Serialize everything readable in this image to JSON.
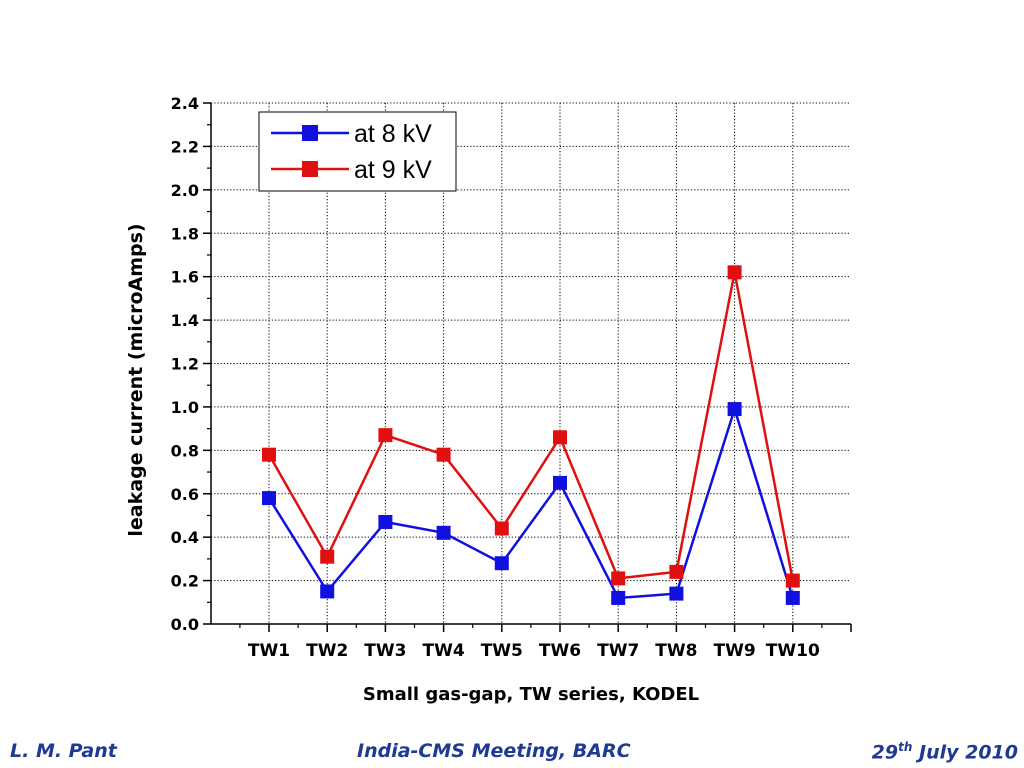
{
  "chart_data": {
    "type": "line",
    "categories": [
      "TW1",
      "TW2",
      "TW3",
      "TW4",
      "TW5",
      "TW6",
      "TW7",
      "TW8",
      "TW9",
      "TW10"
    ],
    "series": [
      {
        "name": "at 8 kV",
        "color": "#1010e0",
        "values": [
          0.58,
          0.15,
          0.47,
          0.42,
          0.28,
          0.65,
          0.12,
          0.14,
          0.99,
          0.12
        ]
      },
      {
        "name": "at 9 kV",
        "color": "#e01010",
        "values": [
          0.78,
          0.31,
          0.87,
          0.78,
          0.44,
          0.86,
          0.21,
          0.24,
          1.62,
          0.2
        ]
      }
    ],
    "xlabel": "Small gas-gap, TW series, KODEL",
    "ylabel": "leakage current (microAmps)",
    "ylim": [
      0.0,
      2.4
    ],
    "yticks": [
      "0.0",
      "0.2",
      "0.4",
      "0.6",
      "0.8",
      "1.0",
      "1.2",
      "1.4",
      "1.6",
      "1.8",
      "2.0",
      "2.2",
      "2.4"
    ],
    "grid": true,
    "legend_position": "top-left"
  },
  "footer": {
    "left": "L. M. Pant",
    "center": "India-CMS Meeting, BARC",
    "right_day": "29",
    "right_sup": "th",
    "right_rest": " July 2010"
  }
}
